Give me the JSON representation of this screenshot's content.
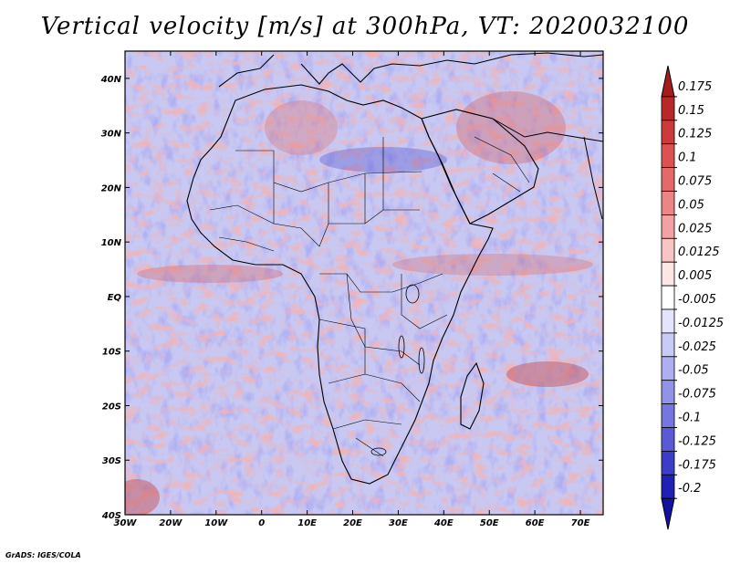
{
  "title": "Vertical velocity [m/s] at 300hPa, VT: 2020032100",
  "credit": "GrADS: IGES/COLA",
  "map": {
    "lon_ticks": [
      "30W",
      "20W",
      "10W",
      "0",
      "10E",
      "20E",
      "30E",
      "40E",
      "50E",
      "60E",
      "70E"
    ],
    "lat_ticks": [
      "40N",
      "30N",
      "20N",
      "10N",
      "EQ",
      "10S",
      "20S",
      "30S",
      "40S"
    ],
    "lon_range": [
      -30,
      75
    ],
    "lat_range": [
      -40,
      45
    ]
  },
  "colorbar": {
    "labels": [
      "0.175",
      "0.15",
      "0.125",
      "0.1",
      "0.075",
      "0.05",
      "0.025",
      "0.0125",
      "0.005",
      "-0.005",
      "-0.0125",
      "-0.025",
      "-0.05",
      "-0.075",
      "-0.1",
      "-0.125",
      "-0.175",
      "-0.2"
    ],
    "colors": [
      "#a51c1c",
      "#b82828",
      "#cc3a3a",
      "#dc5252",
      "#e46a6a",
      "#ec8686",
      "#f2a2a2",
      "#f8c4c4",
      "#fde6e6",
      "#ffffff",
      "#e4e4fc",
      "#cacaf6",
      "#aeaef0",
      "#9292e8",
      "#7676e0",
      "#5a5ad6",
      "#3c3cc8",
      "#2020b4",
      "#1212a0"
    ]
  }
}
